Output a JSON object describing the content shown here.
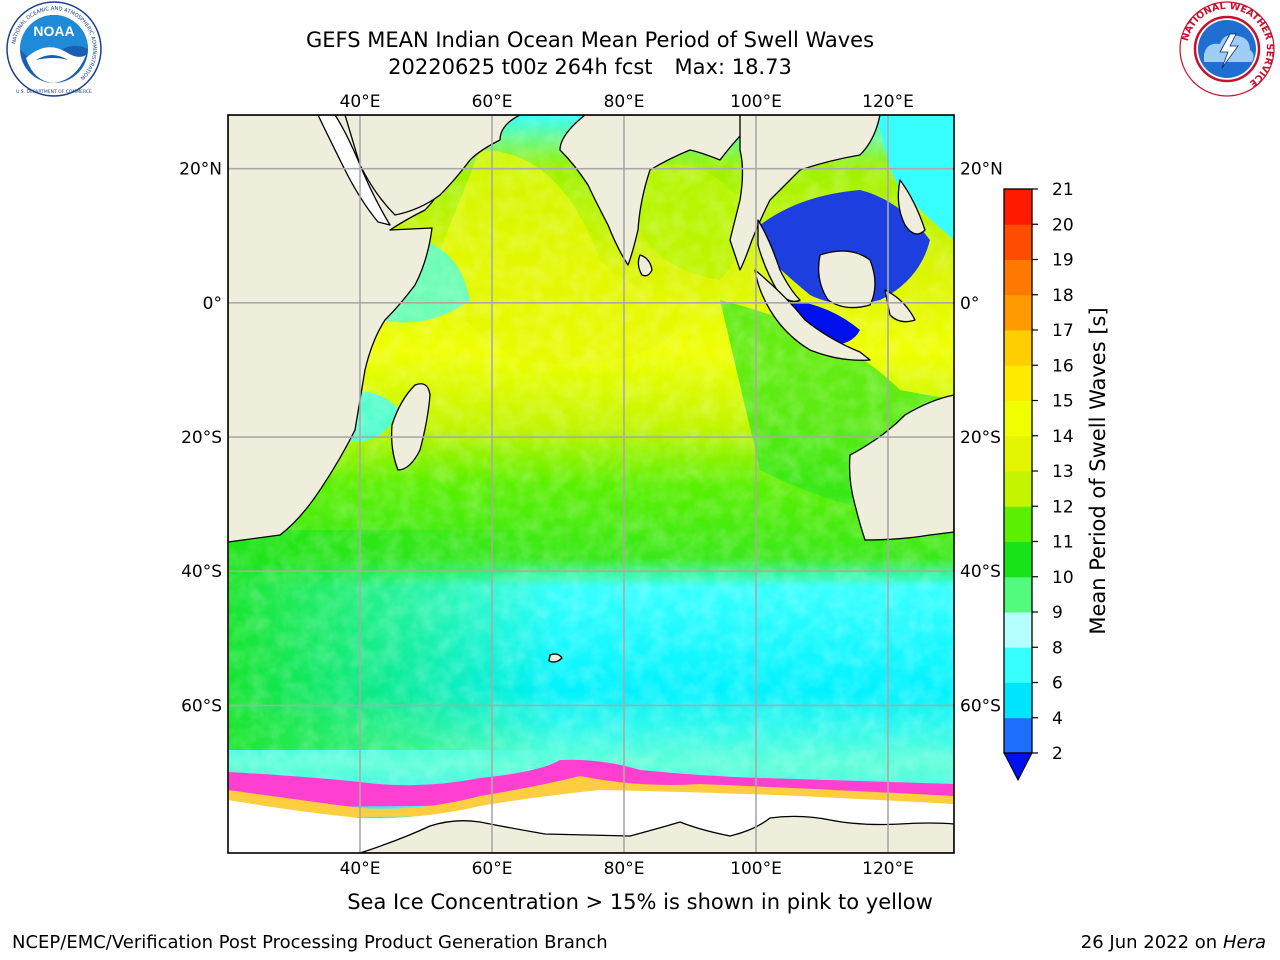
{
  "header": {
    "title_line1": "GEFS MEAN Indian Ocean Mean Period of Swell Waves",
    "title_line2_run": "20220625 t00z 264h fcst",
    "title_line2_max": "Max: 18.73"
  },
  "logos": {
    "noaa_text": "NOAA",
    "noaa_ring_text": "NATIONAL OCEANIC AND ATMOSPHERIC ADMINISTRATION",
    "noaa_bottom_text": "U.S. DEPARTMENT OF COMMERCE",
    "nws_ring_text": "NATIONAL WEATHER SERVICE"
  },
  "map": {
    "lon_ticks": [
      "40°E",
      "60°E",
      "80°E",
      "100°E",
      "120°E"
    ],
    "lat_ticks_left": [
      "20°N",
      "0°",
      "20°S",
      "40°S",
      "60°S"
    ],
    "lat_ticks_right": [
      "20°N",
      "0°",
      "20°S",
      "40°S",
      "60°S"
    ],
    "lon_values": [
      40,
      60,
      80,
      100,
      120
    ],
    "lat_values": [
      20,
      0,
      -20,
      -40,
      -60
    ],
    "lon_range": [
      20,
      130
    ],
    "lat_range": [
      -82,
      28
    ],
    "grid": true,
    "land_color": "#efeedc",
    "ice_color": "#ffffff"
  },
  "colorbar": {
    "label": "Mean Period of Swell Waves [s]",
    "ticks": [
      "2",
      "4",
      "6",
      "8",
      "9",
      "10",
      "11",
      "12",
      "13",
      "14",
      "15",
      "16",
      "17",
      "18",
      "19",
      "20",
      "21"
    ],
    "colors": [
      "#1e6fff",
      "#00e5ff",
      "#38ffff",
      "#b4ffff",
      "#53fb7c",
      "#18e318",
      "#5bf000",
      "#c4f500",
      "#e3f600",
      "#f0ff00",
      "#ffeb00",
      "#ffcd00",
      "#ff9a00",
      "#ff7800",
      "#ff4d00",
      "#ff1a00"
    ],
    "under_color": "#0011ee"
  },
  "footer": {
    "ice_note": "Sea Ice Concentration > 15% is shown in pink to yellow",
    "left": "NCEP/EMC/Verification Post Processing Product Generation Branch",
    "right_date": "26 Jun 2022 on",
    "right_host": "Hera"
  }
}
